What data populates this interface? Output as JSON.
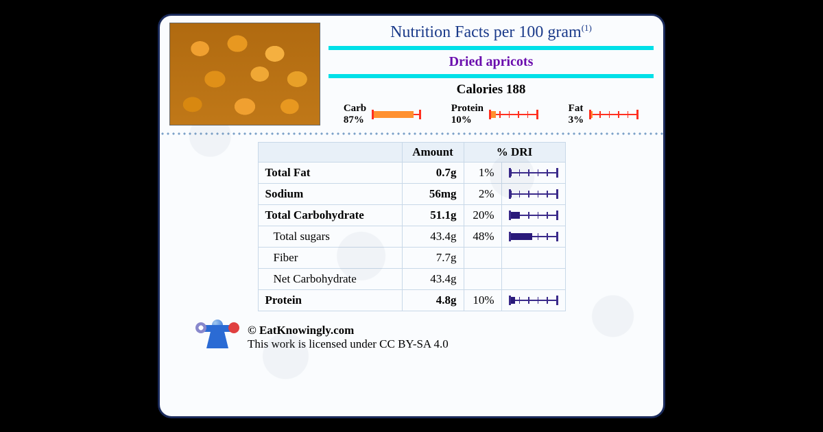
{
  "colors": {
    "card_border": "#1a2a5a",
    "card_bg": "#fafcfe",
    "title": "#1a3a8a",
    "cyan_bar": "#00e0e8",
    "food_name": "#6a0dad",
    "macro_gauge": "#ff3020",
    "macro_fill": "#ff9030",
    "table_gauge": "#3a2a8a",
    "table_fill": "#2a1a7a",
    "table_header_bg": "#e8f0f8",
    "table_border": "#c8d8e8"
  },
  "header": {
    "title": "Nutrition Facts per 100 gram",
    "title_sup": "(1)",
    "food_name": "Dried apricots",
    "calories_label": "Calories",
    "calories_value": "188"
  },
  "macros": [
    {
      "label": "Carb",
      "pct": "87%",
      "fill": 87
    },
    {
      "label": "Protein",
      "pct": "10%",
      "fill": 10
    },
    {
      "label": "Fat",
      "pct": "3%",
      "fill": 3
    }
  ],
  "table": {
    "headers": {
      "amount": "Amount",
      "dri": "% DRI"
    },
    "rows": [
      {
        "name": "Total Fat",
        "amount": "0.7g",
        "dri": "1%",
        "fill": 1,
        "sub": false
      },
      {
        "name": "Sodium",
        "amount": "56mg",
        "dri": "2%",
        "fill": 2,
        "sub": false
      },
      {
        "name": "Total Carbohydrate",
        "amount": "51.1g",
        "dri": "20%",
        "fill": 20,
        "sub": false
      },
      {
        "name": "Total sugars",
        "amount": "43.4g",
        "dri": "48%",
        "fill": 48,
        "sub": true
      },
      {
        "name": "Fiber",
        "amount": "7.7g",
        "dri": "",
        "fill": null,
        "sub": true
      },
      {
        "name": "Net Carbohydrate",
        "amount": "43.4g",
        "dri": "",
        "fill": null,
        "sub": true
      },
      {
        "name": "Protein",
        "amount": "4.8g",
        "dri": "10%",
        "fill": 10,
        "sub": false
      }
    ]
  },
  "footer": {
    "copyright": "© EatKnowingly.com",
    "license": "This work is licensed under CC BY-SA 4.0"
  }
}
